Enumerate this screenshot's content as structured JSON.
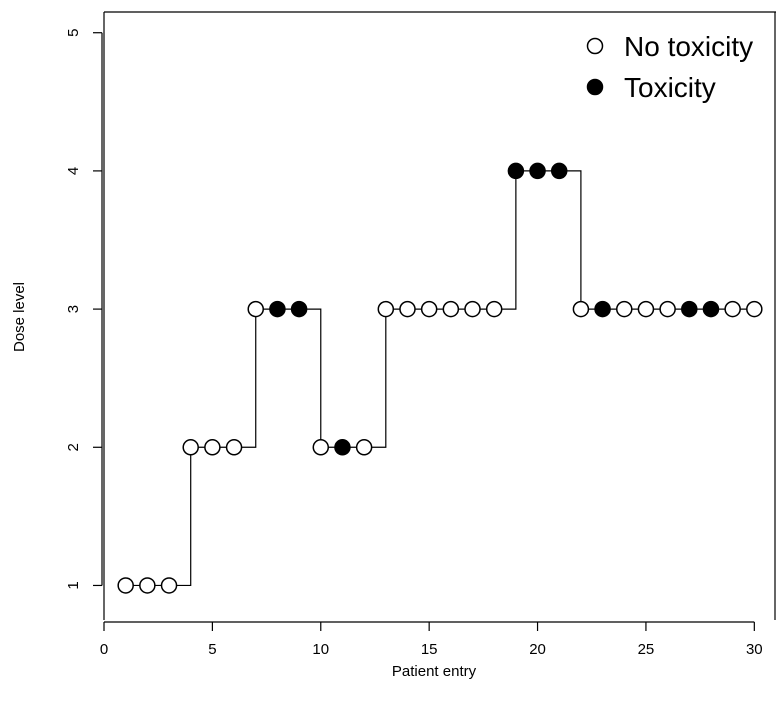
{
  "chart_data": {
    "type": "scatter",
    "title": "",
    "xlabel": "Patient entry",
    "ylabel": "Dose level",
    "xlim": [
      0,
      31
    ],
    "ylim": [
      0.75,
      5.15
    ],
    "x_ticks": [
      0,
      5,
      10,
      15,
      20,
      25,
      30
    ],
    "y_ticks": [
      1,
      2,
      3,
      4,
      5
    ],
    "grid": false,
    "legend_position": "top-right",
    "step_line": true,
    "colors": {
      "line": "#000000",
      "open_marker_stroke": "#000000",
      "filled_marker": "#000000",
      "background": "#ffffff"
    },
    "series": [
      {
        "name": "No toxicity",
        "marker": "open-circle",
        "x": [
          1,
          2,
          3,
          4,
          5,
          6,
          7,
          10,
          12,
          13,
          14,
          15,
          16,
          17,
          18,
          22,
          24,
          25,
          26,
          29,
          30
        ],
        "y": [
          1,
          1,
          1,
          2,
          2,
          2,
          3,
          2,
          2,
          3,
          3,
          3,
          3,
          3,
          3,
          3,
          3,
          3,
          3,
          3,
          3
        ]
      },
      {
        "name": "Toxicity",
        "marker": "filled-circle",
        "x": [
          8,
          9,
          11,
          19,
          20,
          21,
          23,
          27,
          28
        ],
        "y": [
          3,
          3,
          2,
          4,
          4,
          4,
          3,
          3,
          3
        ]
      }
    ],
    "trajectory": {
      "x": [
        1,
        2,
        3,
        4,
        5,
        6,
        7,
        8,
        9,
        10,
        11,
        12,
        13,
        14,
        15,
        16,
        17,
        18,
        19,
        20,
        21,
        22,
        23,
        24,
        25,
        26,
        27,
        28,
        29,
        30
      ],
      "y": [
        1,
        1,
        1,
        2,
        2,
        2,
        3,
        3,
        3,
        2,
        2,
        2,
        3,
        3,
        3,
        3,
        3,
        3,
        4,
        4,
        4,
        3,
        3,
        3,
        3,
        3,
        3,
        3,
        3,
        3
      ]
    }
  }
}
